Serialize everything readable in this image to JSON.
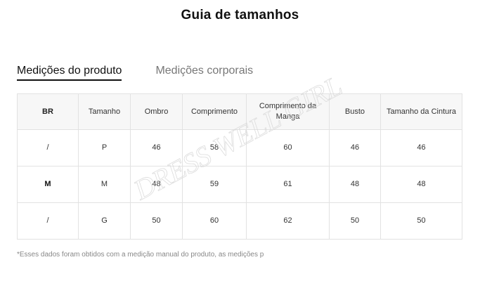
{
  "page": {
    "title": "Guia de tamanhos"
  },
  "tabs": [
    {
      "label": "Medições do produto",
      "active": true
    },
    {
      "label": "Medições corporais",
      "active": false
    }
  ],
  "table": {
    "headers": [
      "BR",
      "Tamanho",
      "Ombro",
      "Comprimento",
      "Comprimento da Manga",
      "Busto",
      "Tamanho da Cintura"
    ],
    "rows": [
      [
        "/",
        "P",
        "46",
        "58",
        "60",
        "46",
        "46"
      ],
      [
        "M",
        "M",
        "48",
        "59",
        "61",
        "48",
        "48"
      ],
      [
        "/",
        "G",
        "50",
        "60",
        "62",
        "50",
        "50"
      ]
    ]
  },
  "watermark": {
    "text": "DRESS WELL GIRL"
  },
  "footnote": {
    "text": "*Esses dados foram obtidos com a medição manual do produto, as medições p"
  },
  "colors": {
    "border": "#e2e2e2",
    "header_bg": "#f7f7f7",
    "active_tab": "#111111",
    "inactive_tab": "#777777"
  }
}
